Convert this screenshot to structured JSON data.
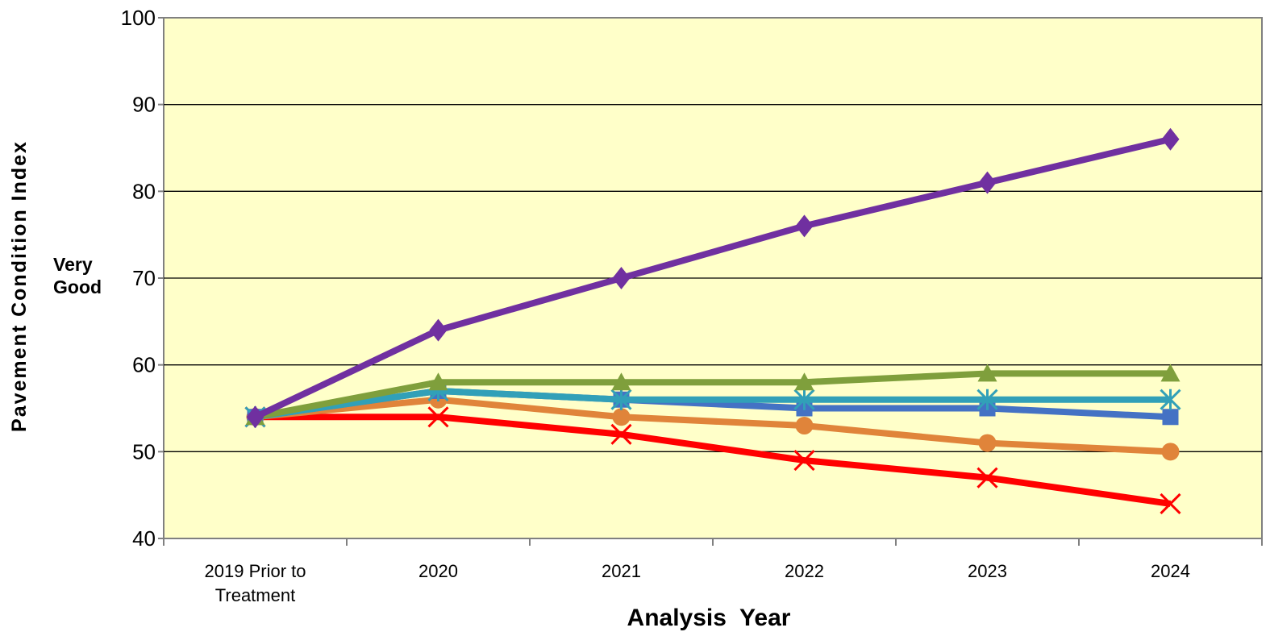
{
  "chart_data": {
    "type": "line",
    "ylabel": "Pavement Condition Index",
    "xlabel": "Analysis  Year",
    "ylim": [
      40,
      100
    ],
    "yticks": [
      40,
      50,
      60,
      70,
      80,
      90,
      100
    ],
    "grid": true,
    "background_color": "#ffffc9",
    "categories": [
      "2019 Prior to Treatment",
      "2020",
      "2021",
      "2022",
      "2023",
      "2024"
    ],
    "category_lines": [
      [
        "2019 Prior to",
        "Treatment"
      ],
      [
        "2020"
      ],
      [
        "2021"
      ],
      [
        "2022"
      ],
      [
        "2023"
      ],
      [
        "2024"
      ]
    ],
    "annotation": [
      "Very",
      "Good"
    ],
    "series": [
      {
        "color": "#ff0000",
        "marker": "x",
        "values": [
          54,
          54,
          52,
          49,
          47,
          44
        ]
      },
      {
        "color": "#e0843a",
        "marker": "circle",
        "values": [
          54,
          56,
          54,
          53,
          51,
          50
        ]
      },
      {
        "color": "#4472c4",
        "marker": "square",
        "values": [
          54,
          57,
          56,
          55,
          55,
          54
        ]
      },
      {
        "color": "#31a0b8",
        "marker": "asterisk",
        "values": [
          54,
          57,
          56,
          56,
          56,
          56
        ]
      },
      {
        "color": "#7f9f3c",
        "marker": "triangle",
        "values": [
          54,
          58,
          58,
          58,
          59,
          59
        ]
      },
      {
        "color": "#7030a0",
        "marker": "diamond",
        "values": [
          54,
          64,
          70,
          76,
          81,
          86
        ]
      }
    ]
  }
}
